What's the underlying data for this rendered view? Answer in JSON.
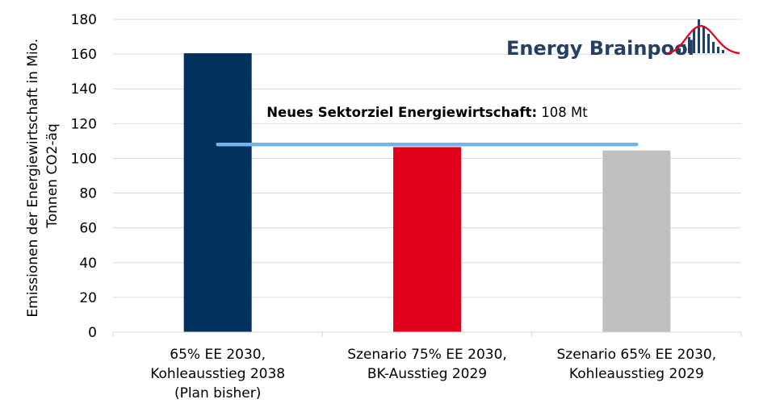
{
  "logo": {
    "text": "Energy Brainpool"
  },
  "chart_data": {
    "type": "bar",
    "categories": [
      [
        "65% EE 2030,",
        "Kohleausstieg 2038",
        "(Plan bisher)"
      ],
      [
        "Szenario 75% EE 2030,",
        "BK-Ausstieg 2029"
      ],
      [
        "Szenario 65% EE 2030,",
        "Kohleausstieg 2029"
      ]
    ],
    "values": [
      160.5,
      106.5,
      104.5
    ],
    "colors": [
      "#03315d",
      "#e2001a",
      "#bfbfbf"
    ],
    "ylabel": [
      "Emissionen der Energiewirtschaft in Mio.",
      "Tonnen CO2-äq"
    ],
    "ylim": [
      0,
      180
    ],
    "yticks": [
      0,
      20,
      40,
      60,
      80,
      100,
      120,
      140,
      160,
      180
    ],
    "grid": true,
    "target_line": {
      "value": 108,
      "color": "#6fb5ee",
      "label_bold": "Neues Sektorziel Energiewirtschaft:",
      "label_value": " 108 Mt"
    }
  }
}
